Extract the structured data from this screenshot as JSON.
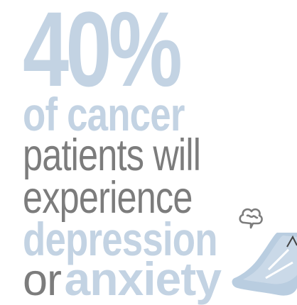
{
  "stat": "40%",
  "line1": "of cancer",
  "line2": "patients will",
  "line3": "experience",
  "line4": "depression",
  "line5_prefix": "or",
  "line5_emphasis": "anxiety",
  "colors": {
    "accent": "#c3d3e3",
    "text": "#7c7c7c",
    "icon": "#b9cde0"
  },
  "icons": [
    "worried-person-icon",
    "thought-bubble-icon"
  ]
}
